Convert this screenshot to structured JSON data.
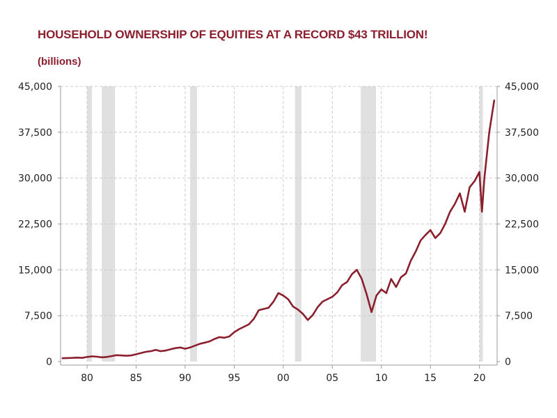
{
  "page": {
    "title": "HOUSEHOLD OWNERSHIP OF EQUITIES AT A RECORD $43 TRILLION!",
    "subtitle": "(billions)"
  },
  "colors": {
    "line": "#8b1f2e",
    "title": "#8b1f2e",
    "recession": "#e0e0e0",
    "grid": "#cccccc",
    "axis": "#999999"
  },
  "chart_data": {
    "type": "line",
    "title": "HOUSEHOLD OWNERSHIP OF EQUITIES AT A RECORD $43 TRILLION!",
    "subtitle": "(billions)",
    "x_range": [
      1977.3,
      2021.8
    ],
    "ylim": [
      0,
      45000
    ],
    "y_ticks": [
      0,
      7500,
      15000,
      22500,
      30000,
      37500,
      45000
    ],
    "y_tick_labels": [
      "0",
      "7,500",
      "15,000",
      "22,500",
      "30,000",
      "37,500",
      "45,000"
    ],
    "x_ticks": [
      1980,
      1985,
      1990,
      1995,
      2000,
      2005,
      2010,
      2015,
      2020
    ],
    "x_tick_labels": [
      "80",
      "85",
      "90",
      "95",
      "00",
      "05",
      "10",
      "15",
      "20"
    ],
    "grid": true,
    "recessions": [
      [
        1980.0,
        1980.5
      ],
      [
        1981.5,
        1982.85
      ],
      [
        1990.5,
        1991.2
      ],
      [
        2001.2,
        2001.85
      ],
      [
        2007.9,
        2009.45
      ],
      [
        2020.0,
        2020.35
      ]
    ],
    "series": [
      {
        "x": [
          1977.5,
          1978.0,
          1978.5,
          1979.0,
          1979.5,
          1980.0,
          1980.5,
          1981.0,
          1981.5,
          1982.0,
          1982.5,
          1983.0,
          1983.5,
          1984.0,
          1984.5,
          1985.0,
          1985.5,
          1986.0,
          1986.5,
          1987.0,
          1987.5,
          1988.0,
          1988.5,
          1989.0,
          1989.5,
          1990.0,
          1990.5,
          1991.0,
          1991.5,
          1992.0,
          1992.5,
          1993.0,
          1993.5,
          1994.0,
          1994.5,
          1995.0,
          1995.5,
          1996.0,
          1996.5,
          1997.0,
          1997.5,
          1998.0,
          1998.5,
          1999.0,
          1999.5,
          2000.0,
          2000.5,
          2001.0,
          2001.5,
          2002.0,
          2002.5,
          2003.0,
          2003.5,
          2004.0,
          2004.5,
          2005.0,
          2005.5,
          2006.0,
          2006.5,
          2007.0,
          2007.5,
          2008.0,
          2008.5,
          2009.0,
          2009.5,
          2010.0,
          2010.5,
          2011.0,
          2011.5,
          2012.0,
          2012.5,
          2013.0,
          2013.5,
          2014.0,
          2014.5,
          2015.0,
          2015.5,
          2016.0,
          2016.5,
          2017.0,
          2017.5,
          2018.0,
          2018.5,
          2019.0,
          2019.5,
          2020.0,
          2020.25,
          2020.5,
          2021.0,
          2021.5
        ],
        "values": [
          550,
          580,
          600,
          650,
          600,
          750,
          850,
          800,
          700,
          750,
          900,
          1050,
          1000,
          950,
          1000,
          1200,
          1400,
          1600,
          1700,
          1900,
          1700,
          1800,
          2000,
          2200,
          2300,
          2100,
          2300,
          2600,
          2900,
          3100,
          3300,
          3700,
          4000,
          3900,
          4100,
          4800,
          5300,
          5700,
          6100,
          7000,
          8400,
          8600,
          8800,
          9800,
          11200,
          10800,
          10200,
          9000,
          8500,
          7800,
          6800,
          7600,
          8900,
          9800,
          10200,
          10600,
          11300,
          12500,
          13000,
          14300,
          15000,
          13500,
          11000,
          8100,
          10800,
          11800,
          11200,
          13500,
          12200,
          13800,
          14400,
          16500,
          18000,
          19800,
          20700,
          21500,
          20200,
          21000,
          22500,
          24500,
          25800,
          27500,
          24500,
          28500,
          29500,
          31000,
          24500,
          30000,
          37500,
          42700
        ]
      }
    ]
  }
}
